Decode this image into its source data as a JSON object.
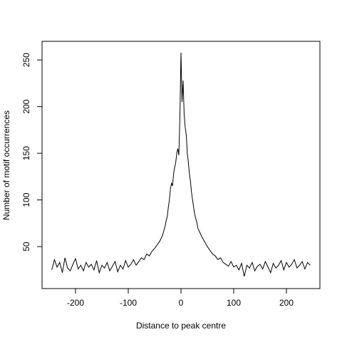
{
  "chart_data": {
    "type": "line",
    "xlabel": "Distance to peak centre",
    "ylabel": "Number of motif occurrences",
    "x": [
      -245,
      -240,
      -235,
      -230,
      -225,
      -220,
      -215,
      -210,
      -205,
      -200,
      -195,
      -190,
      -185,
      -180,
      -175,
      -170,
      -165,
      -160,
      -155,
      -150,
      -145,
      -140,
      -135,
      -130,
      -125,
      -120,
      -115,
      -110,
      -105,
      -100,
      -95,
      -90,
      -85,
      -80,
      -75,
      -70,
      -65,
      -60,
      -55,
      -50,
      -45,
      -40,
      -35,
      -32,
      -30,
      -28,
      -26,
      -24,
      -22,
      -20,
      -18,
      -16,
      -14,
      -12,
      -10,
      -8,
      -6,
      -4,
      -2,
      0,
      2,
      4,
      6,
      8,
      10,
      12,
      14,
      16,
      18,
      20,
      22,
      24,
      26,
      28,
      30,
      32,
      35,
      40,
      45,
      50,
      55,
      60,
      65,
      70,
      75,
      80,
      85,
      90,
      95,
      100,
      105,
      110,
      115,
      120,
      125,
      130,
      135,
      140,
      145,
      150,
      155,
      160,
      165,
      170,
      175,
      180,
      185,
      190,
      195,
      200,
      205,
      210,
      215,
      220,
      225,
      230,
      235,
      240,
      245
    ],
    "series": [
      {
        "color": "#000000",
        "values": [
          25,
          36,
          28,
          33,
          22,
          38,
          27,
          24,
          31,
          37,
          26,
          30,
          24,
          33,
          28,
          31,
          25,
          35,
          22,
          30,
          27,
          33,
          24,
          29,
          34,
          23,
          30,
          26,
          35,
          28,
          31,
          36,
          30,
          34,
          38,
          36,
          42,
          40,
          45,
          48,
          52,
          56,
          62,
          68,
          72,
          78,
          82,
          92,
          100,
          112,
          118,
          115,
          128,
          135,
          140,
          150,
          155,
          148,
          190,
          258,
          205,
          228,
          192,
          178,
          170,
          150,
          140,
          128,
          120,
          108,
          100,
          92,
          85,
          80,
          76,
          70,
          66,
          60,
          55,
          50,
          46,
          42,
          40,
          36,
          38,
          33,
          31,
          29,
          34,
          28,
          30,
          25,
          32,
          18,
          30,
          27,
          33,
          24,
          29,
          31,
          26,
          34,
          28,
          22,
          32,
          27,
          30,
          35,
          25,
          33,
          28,
          31,
          36,
          27,
          30,
          34,
          26,
          33,
          30
        ]
      }
    ],
    "xlim": [
      -263.5,
      263.5
    ],
    "xticks": [
      -200,
      -100,
      0,
      100,
      200
    ],
    "ylim": [
      5,
      270
    ],
    "yticks": [
      50,
      100,
      150,
      200,
      250
    ]
  }
}
